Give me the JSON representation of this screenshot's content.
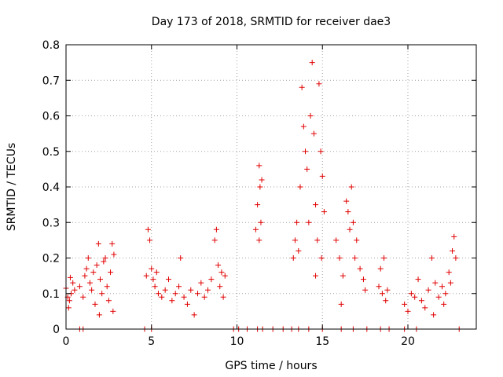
{
  "chart_data": {
    "type": "scatter",
    "title": "Day 173 of 2018, SRMTID for receiver dae3",
    "xlabel": "GPS time / hours",
    "ylabel": "SRMTID / TECUs",
    "xlim": [
      0,
      24
    ],
    "ylim": [
      0,
      0.8
    ],
    "grid": true,
    "x_ticks": [
      0,
      5,
      10,
      15,
      20
    ],
    "x_tick_labels": [
      "0",
      "5",
      "10",
      "15",
      "20"
    ],
    "y_ticks": [
      0,
      0.1,
      0.2,
      0.3,
      0.4,
      0.5,
      0.6,
      0.7,
      0.8
    ],
    "y_tick_labels": [
      "0",
      "0.1",
      "0.2",
      "0.3",
      "0.4",
      "0.5",
      "0.6",
      "0.7",
      "0.8"
    ],
    "series": [
      {
        "name": "SRMTID",
        "color": "#e00000",
        "marker": "plus",
        "points": [
          [
            0.0,
            0.115
          ],
          [
            0.1,
            0.09
          ],
          [
            0.2,
            0.08
          ],
          [
            0.3,
            0.1
          ],
          [
            0.4,
            0.13
          ],
          [
            0.5,
            0.11
          ],
          [
            0.15,
            0.06
          ],
          [
            0.25,
            0.145
          ],
          [
            0.8,
            0.12
          ],
          [
            1.0,
            0.09
          ],
          [
            1.1,
            0.15
          ],
          [
            1.2,
            0.17
          ],
          [
            1.3,
            0.2
          ],
          [
            1.4,
            0.13
          ],
          [
            1.5,
            0.11
          ],
          [
            1.6,
            0.16
          ],
          [
            1.8,
            0.18
          ],
          [
            1.9,
            0.24
          ],
          [
            2.0,
            0.14
          ],
          [
            2.1,
            0.1
          ],
          [
            2.2,
            0.19
          ],
          [
            2.3,
            0.2
          ],
          [
            2.4,
            0.12
          ],
          [
            2.5,
            0.08
          ],
          [
            2.6,
            0.16
          ],
          [
            2.7,
            0.24
          ],
          [
            2.8,
            0.21
          ],
          [
            2.75,
            0.05
          ],
          [
            1.95,
            0.04
          ],
          [
            1.7,
            0.07
          ],
          [
            4.7,
            0.15
          ],
          [
            4.8,
            0.28
          ],
          [
            4.9,
            0.25
          ],
          [
            5.0,
            0.17
          ],
          [
            5.1,
            0.14
          ],
          [
            5.2,
            0.12
          ],
          [
            5.3,
            0.16
          ],
          [
            5.4,
            0.1
          ],
          [
            5.6,
            0.09
          ],
          [
            5.8,
            0.11
          ],
          [
            6.0,
            0.14
          ],
          [
            6.2,
            0.08
          ],
          [
            6.4,
            0.1
          ],
          [
            6.6,
            0.12
          ],
          [
            6.7,
            0.2
          ],
          [
            6.9,
            0.09
          ],
          [
            7.1,
            0.07
          ],
          [
            7.3,
            0.11
          ],
          [
            7.5,
            0.04
          ],
          [
            7.7,
            0.1
          ],
          [
            7.9,
            0.13
          ],
          [
            8.1,
            0.09
          ],
          [
            8.3,
            0.11
          ],
          [
            8.5,
            0.14
          ],
          [
            8.7,
            0.25
          ],
          [
            8.8,
            0.28
          ],
          [
            8.9,
            0.18
          ],
          [
            9.0,
            0.12
          ],
          [
            9.1,
            0.16
          ],
          [
            9.2,
            0.09
          ],
          [
            9.3,
            0.15
          ],
          [
            11.3,
            0.46
          ],
          [
            11.35,
            0.4
          ],
          [
            11.4,
            0.3
          ],
          [
            11.3,
            0.25
          ],
          [
            11.2,
            0.35
          ],
          [
            11.45,
            0.42
          ],
          [
            11.1,
            0.28
          ],
          [
            13.3,
            0.2
          ],
          [
            13.4,
            0.25
          ],
          [
            13.5,
            0.3
          ],
          [
            13.6,
            0.22
          ],
          [
            13.7,
            0.4
          ],
          [
            13.8,
            0.68
          ],
          [
            13.9,
            0.57
          ],
          [
            14.0,
            0.5
          ],
          [
            14.1,
            0.45
          ],
          [
            14.2,
            0.3
          ],
          [
            14.3,
            0.6
          ],
          [
            14.4,
            0.75
          ],
          [
            14.5,
            0.55
          ],
          [
            14.6,
            0.35
          ],
          [
            14.7,
            0.25
          ],
          [
            14.8,
            0.69
          ],
          [
            14.9,
            0.5
          ],
          [
            15.0,
            0.43
          ],
          [
            15.1,
            0.33
          ],
          [
            14.95,
            0.2
          ],
          [
            14.6,
            0.15
          ],
          [
            15.8,
            0.25
          ],
          [
            16.0,
            0.2
          ],
          [
            16.2,
            0.15
          ],
          [
            16.4,
            0.36
          ],
          [
            16.5,
            0.33
          ],
          [
            16.6,
            0.28
          ],
          [
            16.7,
            0.4
          ],
          [
            16.8,
            0.3
          ],
          [
            16.9,
            0.2
          ],
          [
            17.0,
            0.25
          ],
          [
            17.2,
            0.17
          ],
          [
            17.4,
            0.14
          ],
          [
            17.5,
            0.11
          ],
          [
            16.1,
            0.07
          ],
          [
            18.3,
            0.12
          ],
          [
            18.4,
            0.17
          ],
          [
            18.5,
            0.1
          ],
          [
            18.6,
            0.2
          ],
          [
            18.7,
            0.08
          ],
          [
            18.8,
            0.11
          ],
          [
            19.8,
            0.07
          ],
          [
            20.0,
            0.05
          ],
          [
            20.2,
            0.1
          ],
          [
            20.4,
            0.09
          ],
          [
            20.6,
            0.14
          ],
          [
            20.8,
            0.08
          ],
          [
            21.0,
            0.06
          ],
          [
            21.2,
            0.11
          ],
          [
            21.4,
            0.2
          ],
          [
            21.6,
            0.13
          ],
          [
            21.8,
            0.09
          ],
          [
            22.0,
            0.12
          ],
          [
            22.2,
            0.1
          ],
          [
            22.4,
            0.16
          ],
          [
            22.6,
            0.22
          ],
          [
            22.7,
            0.26
          ],
          [
            22.8,
            0.2
          ],
          [
            22.5,
            0.13
          ],
          [
            22.1,
            0.07
          ],
          [
            21.5,
            0.04
          ],
          [
            0.8,
            0.0
          ],
          [
            1.0,
            0.0
          ],
          [
            4.6,
            0.0
          ],
          [
            5.0,
            0.0
          ],
          [
            9.8,
            0.0
          ],
          [
            10.1,
            0.0
          ],
          [
            10.6,
            0.0
          ],
          [
            11.2,
            0.0
          ],
          [
            11.5,
            0.0
          ],
          [
            12.1,
            0.0
          ],
          [
            12.7,
            0.0
          ],
          [
            13.2,
            0.0
          ],
          [
            13.6,
            0.0
          ],
          [
            14.2,
            0.0
          ],
          [
            15.0,
            0.0
          ],
          [
            16.1,
            0.0
          ],
          [
            16.8,
            0.0
          ],
          [
            17.6,
            0.0
          ],
          [
            18.4,
            0.0
          ],
          [
            18.9,
            0.0
          ],
          [
            19.8,
            0.0
          ],
          [
            20.5,
            0.0
          ],
          [
            23.0,
            0.0
          ]
        ]
      }
    ]
  }
}
